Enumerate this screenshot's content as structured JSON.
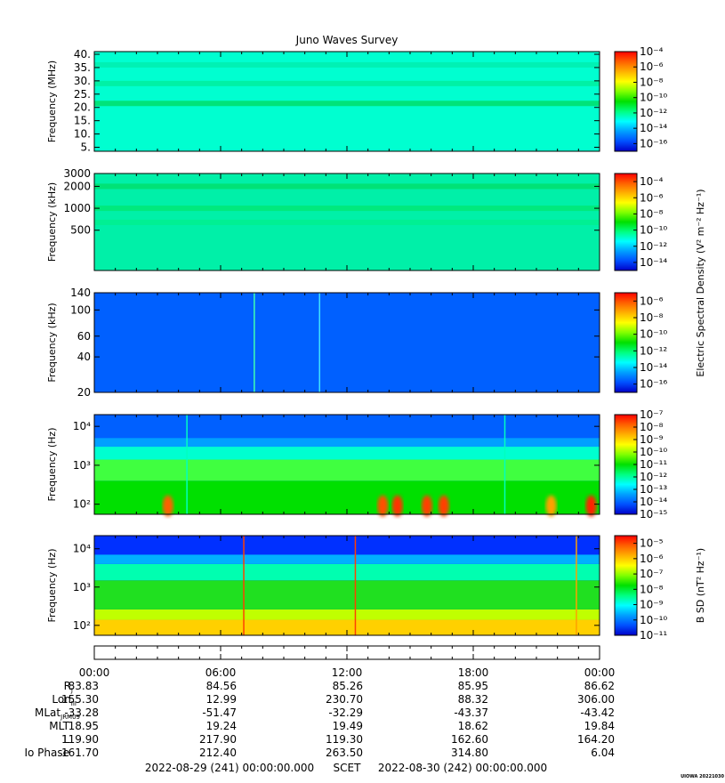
{
  "title": "Juno Waves Survey",
  "colors": {
    "scale": [
      "#0000c8",
      "#0050ff",
      "#00a0ff",
      "#00ffff",
      "#00ff80",
      "#00e000",
      "#80ff00",
      "#ffff00",
      "#ffb000",
      "#ff6000",
      "#ff0000"
    ],
    "background": "#ffffff"
  },
  "chart_data": [
    {
      "type": "heatmap",
      "name": "panel-1",
      "ylabel": "Frequency (MHz)",
      "yscale": "linear",
      "ylim": [
        3.5,
        41
      ],
      "yticks": [
        5,
        10,
        15,
        20,
        25,
        30,
        35,
        40
      ],
      "yticklabels": [
        "5.",
        "10.",
        "15.",
        "20.",
        "25.",
        "30.",
        "35.",
        "40."
      ],
      "colorbar_exponents": [
        -4,
        -6,
        -8,
        -10,
        -12,
        -14,
        -16
      ],
      "colorbar_range": [
        -17,
        -4
      ],
      "base_color": "#00ffd0",
      "bands": [
        {
          "y": 21.5,
          "color": "#00e070"
        },
        {
          "y": 29,
          "color": "#00f0a0"
        },
        {
          "y": 36,
          "color": "#00f0b0"
        }
      ],
      "spikes": [],
      "blobs": []
    },
    {
      "type": "heatmap",
      "name": "panel-2",
      "ylabel": "Frequency (kHz)",
      "yscale": "log",
      "ylim": [
        140,
        3000
      ],
      "yticks": [
        500,
        1000,
        2000,
        3000
      ],
      "yticklabels": [
        "500",
        "1000",
        "2000",
        "3000"
      ],
      "colorbar_exponents": [
        -4,
        -6,
        -8,
        -10,
        -12,
        -14
      ],
      "colorbar_range": [
        -15,
        -3
      ],
      "colorbar_label": "Electric Spectral Density (V² m⁻² Hz⁻¹)",
      "base_color": "#00f0a8",
      "bands": [
        {
          "y": 2000,
          "color": "#00e070"
        },
        {
          "y": 1000,
          "color": "#00e878"
        },
        {
          "y": 640,
          "color": "#00f090"
        }
      ],
      "spikes": [],
      "blobs": []
    },
    {
      "type": "heatmap",
      "name": "panel-3",
      "ylabel": "Frequency (kHz)",
      "yscale": "log",
      "ylim": [
        20,
        140
      ],
      "yticks": [
        20,
        40,
        60,
        100,
        140
      ],
      "yticklabels": [
        "20",
        "40",
        "60",
        "100",
        "140"
      ],
      "colorbar_exponents": [
        -6,
        -8,
        -10,
        -12,
        -14,
        -16
      ],
      "colorbar_range": [
        -17,
        -5
      ],
      "base_color": "#0060ff",
      "bands": [],
      "spikes": [
        {
          "t": 7.6,
          "color": "#40ffb0"
        },
        {
          "t": 10.7,
          "color": "#40e0ff"
        }
      ],
      "blobs": []
    },
    {
      "type": "heatmap",
      "name": "panel-4",
      "ylabel": "Frequency (Hz)",
      "yscale": "log",
      "ylim": [
        55,
        20000
      ],
      "yticks": [
        100,
        1000,
        10000
      ],
      "yticklabels": [
        "10²",
        "10³",
        "10⁴"
      ],
      "colorbar_exponents": [
        -7,
        -8,
        -9,
        -10,
        -11,
        -12,
        -13,
        -14,
        -15
      ],
      "colorbar_range": [
        -15,
        -7
      ],
      "base_color": "#0060ff",
      "layers": [
        {
          "from": 55,
          "to": 400,
          "color": "#00e000"
        },
        {
          "from": 400,
          "to": 1400,
          "color": "#40ff40"
        },
        {
          "from": 1400,
          "to": 3000,
          "color": "#00ffd0"
        },
        {
          "from": 3000,
          "to": 5000,
          "color": "#00a0ff"
        }
      ],
      "bands": [],
      "spikes": [
        {
          "t": 4.4,
          "color": "#00ffc0"
        },
        {
          "t": 19.5,
          "color": "#00ffc0"
        }
      ],
      "blobs": [
        {
          "t": 3.5,
          "y": 90,
          "color": "#ff6000"
        },
        {
          "t": 13.7,
          "y": 90,
          "color": "#ff5000"
        },
        {
          "t": 14.4,
          "y": 90,
          "color": "#ff3000"
        },
        {
          "t": 15.8,
          "y": 90,
          "color": "#ff4000"
        },
        {
          "t": 16.6,
          "y": 90,
          "color": "#ff4000"
        },
        {
          "t": 21.7,
          "y": 90,
          "color": "#ffa000"
        },
        {
          "t": 23.6,
          "y": 90,
          "color": "#ff2000"
        }
      ]
    },
    {
      "type": "heatmap",
      "name": "panel-5",
      "ylabel": "Frequency (Hz)",
      "yscale": "log",
      "ylim": [
        55,
        22000
      ],
      "yticks": [
        100,
        1000,
        10000
      ],
      "yticklabels": [
        "10²",
        "10³",
        "10⁴"
      ],
      "colorbar_exponents": [
        -5,
        -6,
        -7,
        -8,
        -9,
        -10,
        -11
      ],
      "colorbar_range": [
        -11,
        -4.5
      ],
      "colorbar_label": "B SD (nT² Hz⁻¹)",
      "base_color": "#0030ff",
      "layers": [
        {
          "from": 55,
          "to": 140,
          "color": "#ffd000"
        },
        {
          "from": 140,
          "to": 260,
          "color": "#c0ff00"
        },
        {
          "from": 260,
          "to": 1500,
          "color": "#20e020"
        },
        {
          "from": 1500,
          "to": 4000,
          "color": "#00ffb0"
        },
        {
          "from": 4000,
          "to": 7000,
          "color": "#00b0ff"
        }
      ],
      "bands": [],
      "spikes": [
        {
          "t": 7.1,
          "color": "#ff4000"
        },
        {
          "t": 12.4,
          "color": "#ff4000"
        },
        {
          "t": 22.9,
          "color": "#ffa000"
        }
      ],
      "blobs": []
    }
  ],
  "xaxis": {
    "range": [
      0,
      24
    ],
    "ticks": [
      0,
      6,
      12,
      18,
      24
    ],
    "ticklabels": [
      "00:00",
      "06:00",
      "12:00",
      "18:00",
      "00:00"
    ]
  },
  "ephemeris": [
    {
      "label": "R",
      "sub": "J",
      "values": [
        "83.83",
        "84.56",
        "85.26",
        "85.95",
        "86.62"
      ]
    },
    {
      "label": "Lon",
      "sub": "III",
      "values": [
        "155.30",
        "12.99",
        "230.70",
        "88.32",
        "306.00"
      ]
    },
    {
      "label": "MLat",
      "sub": "JRM09",
      "values": [
        "-33.28",
        "-51.47",
        "-32.29",
        "-43.37",
        "-43.42"
      ]
    },
    {
      "label": "MLT",
      "sub": "",
      "values": [
        "18.95",
        "19.24",
        "19.49",
        "18.62",
        "19.84"
      ]
    },
    {
      "label": "L",
      "sub": "",
      "values": [
        "119.90",
        "217.90",
        "119.30",
        "162.60",
        "164.20"
      ]
    },
    {
      "label": "Io Phase",
      "sub": "",
      "values": [
        "161.70",
        "212.40",
        "263.50",
        "314.80",
        "6.04"
      ]
    }
  ],
  "footer": {
    "start": "2022-08-29 (241) 00:00:00.000",
    "scet": "SCET",
    "end": "2022-08-30 (242) 00:00:00.000"
  },
  "stamp": "UIOWA 20221030"
}
